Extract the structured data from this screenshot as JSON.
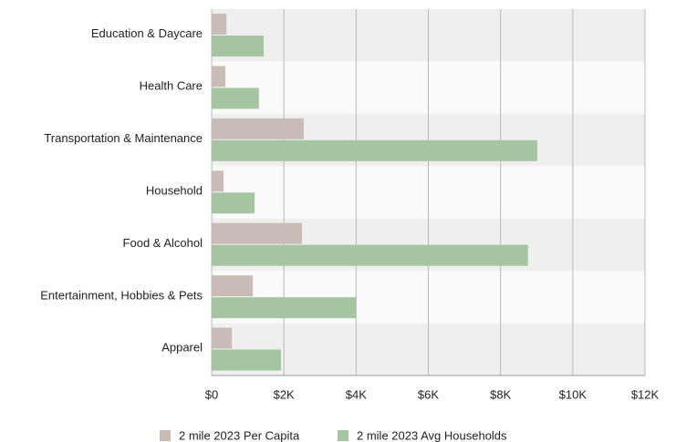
{
  "chart_data": {
    "type": "hbar",
    "categories": [
      "Education & Daycare",
      "Health Care",
      "Transportation & Maintenance",
      "Household",
      "Food & Alcohol",
      "Entertainment, Hobbies & Pets",
      "Apparel"
    ],
    "series": [
      {
        "name": "2 mile 2023 Per Capita",
        "color": "#c9bcb6",
        "values": [
          410,
          380,
          2550,
          330,
          2500,
          1140,
          560
        ]
      },
      {
        "name": "2 mile 2023 Avg Households",
        "color": "#a5c5a2",
        "values": [
          1440,
          1310,
          9020,
          1190,
          8760,
          3990,
          1920
        ]
      }
    ],
    "xlim": [
      0,
      12000
    ],
    "xticks": [
      {
        "value": 0,
        "label": "$0"
      },
      {
        "value": 2000,
        "label": "$2K"
      },
      {
        "value": 4000,
        "label": "$4K"
      },
      {
        "value": 6000,
        "label": "$6K"
      },
      {
        "value": 8000,
        "label": "$8K"
      },
      {
        "value": 10000,
        "label": "$10K"
      },
      {
        "value": 12000,
        "label": "$12K"
      }
    ],
    "grid": true
  }
}
